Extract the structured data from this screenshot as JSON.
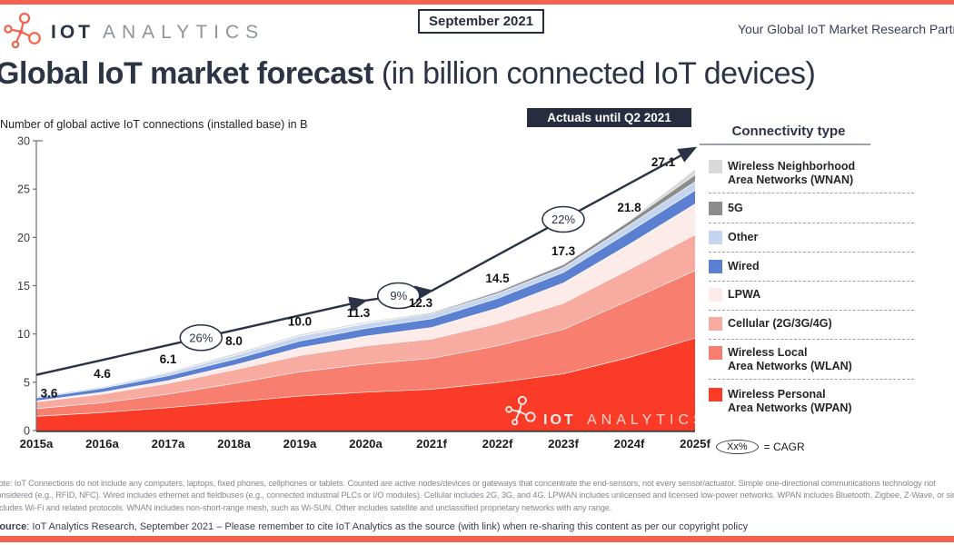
{
  "header": {
    "logo": {
      "iot": "IOT",
      "analytics": "ANALYTICS"
    },
    "date_badge": "September 2021",
    "tagline": "Your Global IoT Market Research Partner",
    "title_bold": "Global IoT market forecast",
    "title_rest": " (in billion connected IoT devices)"
  },
  "chart_header": {
    "axis_title": "Number of global active IoT connections (installed base) in B",
    "actuals_badge": "Actuals until Q2 2021"
  },
  "legend": {
    "title": "Connectivity type",
    "items": [
      {
        "label": "Wireless Neighborhood\nArea Networks (WNAN)",
        "color": "#d9d9d9"
      },
      {
        "label": "5G",
        "color": "#8c8c8c"
      },
      {
        "label": "Other",
        "color": "#c5d5f0"
      },
      {
        "label": "Wired",
        "color": "#5b80d1"
      },
      {
        "label": "LPWA",
        "color": "#fdebe9"
      },
      {
        "label": "Cellular (2G/3G/4G)",
        "color": "#f8aba1"
      },
      {
        "label": "Wireless Local\nArea Networks (WLAN)",
        "color": "#f87e6f"
      },
      {
        "label": "Wireless Personal\nArea Networks (WPAN)",
        "color": "#fa3b28"
      }
    ]
  },
  "watermark": {
    "iot": "IOT",
    "analytics": "ANALYTICS"
  },
  "cagr_key": {
    "oval_text": "Xx%",
    "equals_text": "= CAGR"
  },
  "chart_data": {
    "type": "area",
    "stacked": true,
    "title": "Global IoT market forecast (in billion connected IoT devices)",
    "ylabel": "Number of global active IoT connections (installed base) in B",
    "ylim": [
      0,
      30
    ],
    "yticks": [
      0,
      5,
      10,
      15,
      20,
      25,
      30
    ],
    "categories": [
      "2015a",
      "2016a",
      "2017a",
      "2018a",
      "2019a",
      "2020a",
      "2021f",
      "2022f",
      "2023f",
      "2024f",
      "2025f"
    ],
    "totals": [
      3.6,
      4.6,
      6.1,
      8.0,
      10.0,
      11.3,
      12.3,
      14.5,
      17.3,
      21.8,
      27.1
    ],
    "series": [
      {
        "name": "Wireless Personal Area Networks (WPAN)",
        "color": "#fa3b28",
        "values": [
          1.5,
          1.9,
          2.4,
          3.0,
          3.6,
          4.0,
          4.3,
          5.0,
          5.9,
          7.6,
          9.6
        ]
      },
      {
        "name": "Wireless Local Area Networks (WLAN)",
        "color": "#f87e6f",
        "values": [
          0.8,
          1.0,
          1.4,
          1.9,
          2.5,
          2.9,
          3.2,
          3.8,
          4.6,
          5.9,
          7.0
        ]
      },
      {
        "name": "Cellular (2G/3G/4G)",
        "color": "#f8aba1",
        "values": [
          0.7,
          0.9,
          1.1,
          1.4,
          1.7,
          1.9,
          2.0,
          2.3,
          2.7,
          3.2,
          3.7
        ]
      },
      {
        "name": "LPWA",
        "color": "#fdebe9",
        "values": [
          0.1,
          0.2,
          0.3,
          0.5,
          0.8,
          1.0,
          1.2,
          1.6,
          2.1,
          2.6,
          3.2
        ]
      },
      {
        "name": "Wired",
        "color": "#5b80d1",
        "values": [
          0.3,
          0.4,
          0.5,
          0.6,
          0.7,
          0.8,
          0.9,
          1.0,
          1.1,
          1.3,
          1.4
        ]
      },
      {
        "name": "Other",
        "color": "#c5d5f0",
        "values": [
          0.15,
          0.15,
          0.3,
          0.4,
          0.5,
          0.5,
          0.5,
          0.5,
          0.5,
          0.7,
          0.9
        ]
      },
      {
        "name": "5G",
        "color": "#8c8c8c",
        "values": [
          0.0,
          0.0,
          0.0,
          0.0,
          0.02,
          0.05,
          0.1,
          0.2,
          0.3,
          0.4,
          0.7
        ]
      },
      {
        "name": "Wireless Neighborhood Area Networks (WNAN)",
        "color": "#d9d9d9",
        "values": [
          0.05,
          0.05,
          0.1,
          0.2,
          0.18,
          0.15,
          0.1,
          0.1,
          0.1,
          0.1,
          0.6
        ]
      }
    ],
    "cagr_annotations": [
      {
        "label": "26%",
        "from": "2015a",
        "to": "2020a"
      },
      {
        "label": "9%",
        "from": "2020a",
        "to": "2021f"
      },
      {
        "label": "22%",
        "from": "2021f",
        "to": "2025f"
      }
    ],
    "legend_position": "right",
    "grid": false
  },
  "footnote": {
    "text": "Note: IoT Connections do not include any computers, laptops, fixed phones, cellphones or tablets. Counted are active nodes/devices or gateways that concentrate the end-sensors, not every sensor/actuator. Simple one-directional communications technology not\nconsidered (e.g., RFID, NFC). Wired includes ethernet and fieldbuses (e.g., connected industrial PLCs or I/O modules). Cellular includes 2G, 3G, and 4G. LPWAN includes unlicensed and licensed low-power networks. WPAN includes Bluetooth, Zigbee, Z-Wave, or similar. WLAN\nincludes Wi-Fi and related protocols. WNAN includes non-short-range mesh, such as Wi-SUN. Other includes satellite and unclassified proprietary networks with any range."
  },
  "source": {
    "bold": "Source",
    "rest": ": IoT Analytics Research, September 2021 – Please remember to cite IoT Analytics as the source (with link) when re-sharing this content as per our copyright policy"
  }
}
